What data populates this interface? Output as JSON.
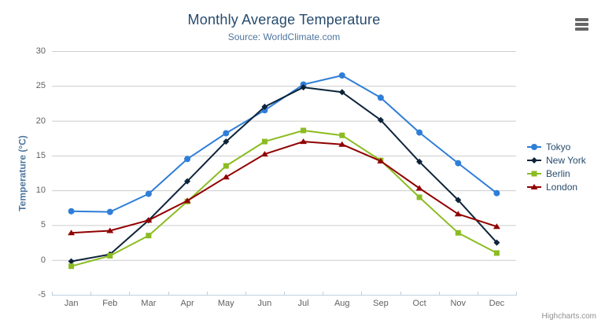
{
  "chart": {
    "credits": "Highcharts.com",
    "context_menu_icon": "hamburger-icon"
  },
  "chart_data": {
    "type": "line",
    "title": "Monthly Average Temperature",
    "subtitle": "Source: WorldClimate.com",
    "xlabel": "",
    "ylabel": "Temperature (°C)",
    "ylim": [
      -5,
      30
    ],
    "ytick_interval": 5,
    "grid": "horizontal",
    "legend_position": "right",
    "categories": [
      "Jan",
      "Feb",
      "Mar",
      "Apr",
      "May",
      "Jun",
      "Jul",
      "Aug",
      "Sep",
      "Oct",
      "Nov",
      "Dec"
    ],
    "series": [
      {
        "name": "Tokyo",
        "color": "#2f7ed8",
        "marker": "circle",
        "values": [
          7.0,
          6.9,
          9.5,
          14.5,
          18.2,
          21.5,
          25.2,
          26.5,
          23.3,
          18.3,
          13.9,
          9.6
        ]
      },
      {
        "name": "New York",
        "color": "#0d233a",
        "marker": "diamond",
        "values": [
          -0.2,
          0.8,
          5.7,
          11.3,
          17.0,
          22.0,
          24.8,
          24.1,
          20.1,
          14.1,
          8.6,
          2.5
        ]
      },
      {
        "name": "Berlin",
        "color": "#8bbc21",
        "marker": "square",
        "values": [
          -0.9,
          0.6,
          3.5,
          8.4,
          13.5,
          17.0,
          18.6,
          17.9,
          14.3,
          9.0,
          3.9,
          1.0
        ]
      },
      {
        "name": "London",
        "color": "#910000",
        "marker": "triangle",
        "values": [
          3.9,
          4.2,
          5.7,
          8.5,
          11.9,
          15.2,
          17.0,
          16.6,
          14.2,
          10.3,
          6.6,
          4.8
        ]
      }
    ]
  },
  "colors": {
    "title": "#274b6d",
    "subtitle": "#4d759e",
    "axis_title": "#4d759e",
    "axis_labels": "#606060",
    "grid_line": "#cccccc",
    "axis_line": "#c0d0e0",
    "legend_text": "#274b6d",
    "credits": "#909090",
    "menu_icon": "#666666",
    "background": "#ffffff"
  }
}
